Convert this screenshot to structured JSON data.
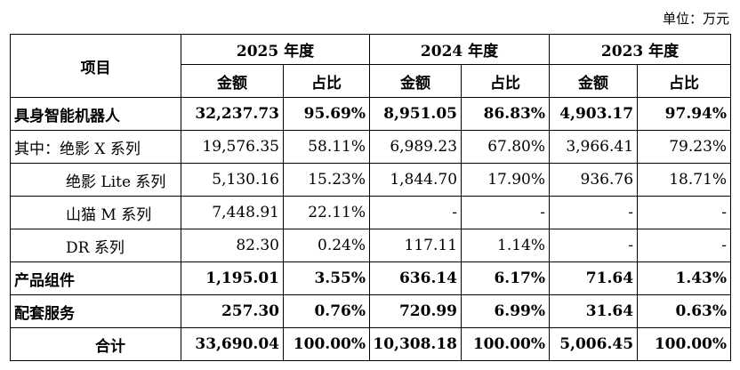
{
  "unit_label": "单位：万元",
  "header": {
    "item": "项目",
    "years": [
      "2025 年度",
      "2024 年度",
      "2023 年度"
    ],
    "amount": "金额",
    "ratio": "占比"
  },
  "rows": [
    {
      "label": "具身智能机器人",
      "values": [
        "32,237.73",
        "95.69%",
        "8,951.05",
        "86.83%",
        "4,903.17",
        "97.94%"
      ]
    },
    {
      "label": "其中：绝影 X 系列",
      "values": [
        "19,576.35",
        "58.11%",
        "6,989.23",
        "67.80%",
        "3,966.41",
        "79.23%"
      ]
    },
    {
      "label": "绝影 Lite 系列",
      "values": [
        "5,130.16",
        "15.23%",
        "1,844.70",
        "17.90%",
        "936.76",
        "18.71%"
      ]
    },
    {
      "label": "山猫 M 系列",
      "values": [
        "7,448.91",
        "22.11%",
        "-",
        "-",
        "-",
        "-"
      ]
    },
    {
      "label": "DR 系列",
      "values": [
        "82.30",
        "0.24%",
        "117.11",
        "1.14%",
        "-",
        "-"
      ]
    },
    {
      "label": "产品组件",
      "values": [
        "1,195.01",
        "3.55%",
        "636.14",
        "6.17%",
        "71.64",
        "1.43%"
      ]
    },
    {
      "label": "配套服务",
      "values": [
        "257.30",
        "0.76%",
        "720.99",
        "6.99%",
        "31.64",
        "0.63%"
      ]
    },
    {
      "label": "合计",
      "values": [
        "33,690.04",
        "100.00%",
        "10,308.18",
        "100.00%",
        "5,006.45",
        "100.00%"
      ]
    }
  ]
}
